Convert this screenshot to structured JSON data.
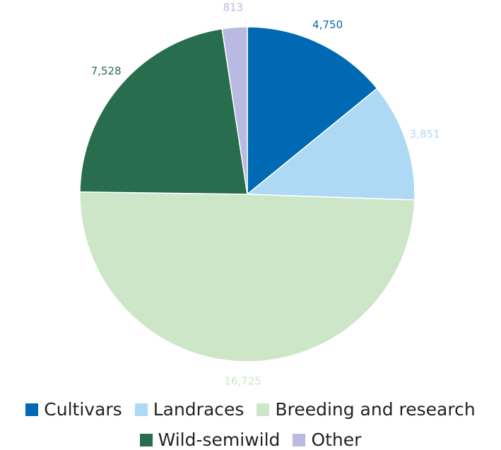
{
  "chart_data": {
    "type": "pie",
    "categories": [
      "Cultivars",
      "Landraces",
      "Breeding and research",
      "Wild-semiwild",
      "Other"
    ],
    "values": [
      4750,
      3851,
      16725,
      7528,
      813
    ],
    "labels": [
      "4,750",
      "3,851",
      "16,725",
      "7,528",
      "813"
    ],
    "colors": [
      "#0069B3",
      "#AED9F4",
      "#CDE6C7",
      "#276D4E",
      "#B8BAE1"
    ],
    "label_colors": [
      "#0069B3",
      "#AED9F4",
      "#CDE6C7",
      "#276D4E",
      "#B8BAE1"
    ],
    "start_angle": "12 o'clock",
    "direction": "clockwise",
    "legend": {
      "placement": "bottom",
      "rows": [
        [
          "Cultivars",
          "Landraces",
          "Breeding and research"
        ],
        [
          "Wild-semiwild",
          "Other"
        ]
      ]
    }
  }
}
